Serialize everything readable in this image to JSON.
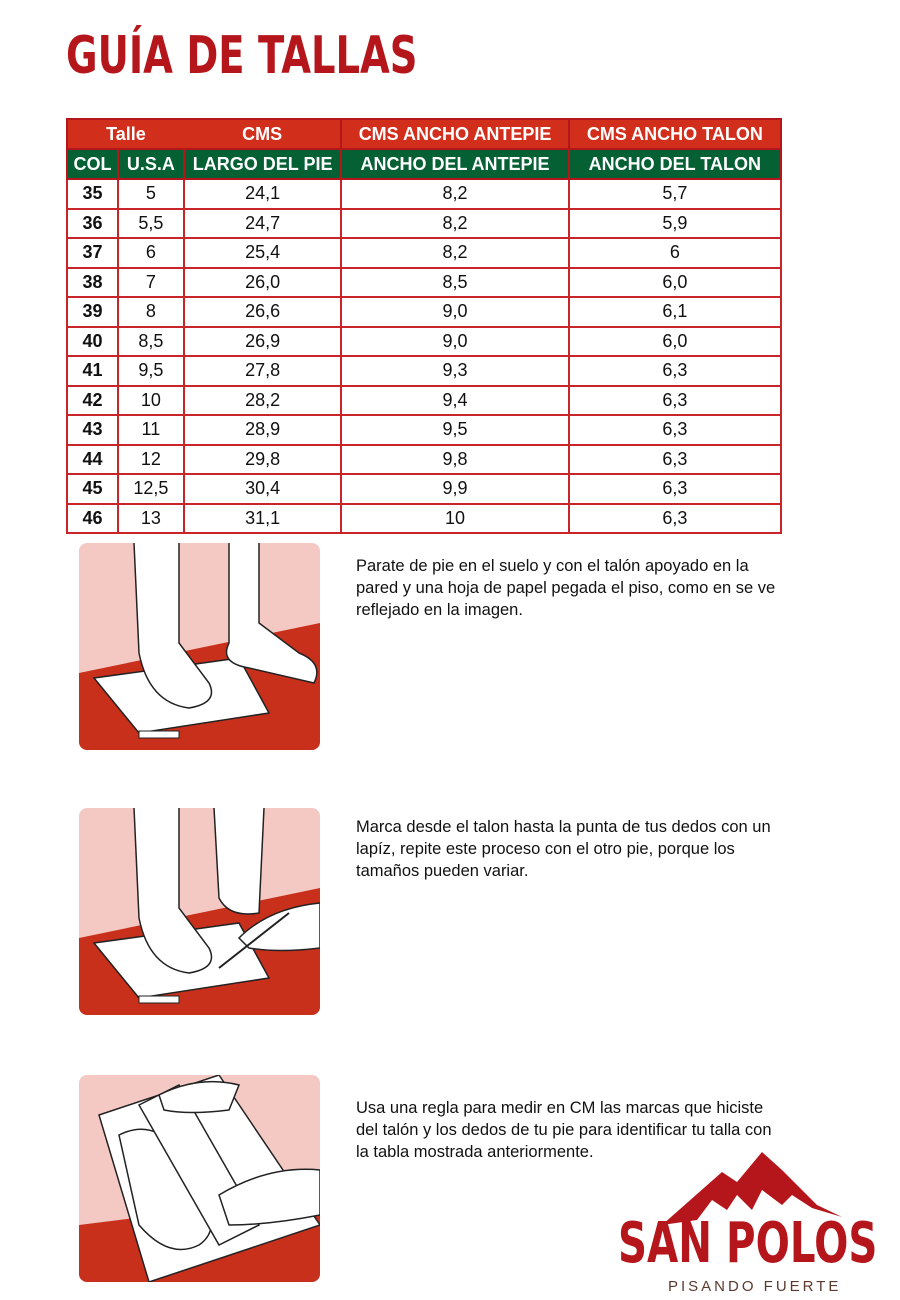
{
  "title": "GUÍA DE TALLAS",
  "table": {
    "header1": [
      "Talle",
      "CMS",
      "CMS ANCHO ANTEPIE",
      "CMS ANCHO TALON"
    ],
    "header2": [
      "COL",
      "U.S.A",
      "LARGO DEL PIE",
      "ANCHO DEL ANTEPIE",
      "ANCHO DEL TALON"
    ],
    "rows": [
      [
        "35",
        "5",
        "24,1",
        "8,2",
        "5,7"
      ],
      [
        "36",
        "5,5",
        "24,7",
        "8,2",
        "5,9"
      ],
      [
        "37",
        "6",
        "25,4",
        "8,2",
        "6"
      ],
      [
        "38",
        "7",
        "26,0",
        "8,5",
        "6,0"
      ],
      [
        "39",
        "8",
        "26,6",
        "9,0",
        "6,1"
      ],
      [
        "40",
        "8,5",
        "26,9",
        "9,0",
        "6,0"
      ],
      [
        "41",
        "9,5",
        "27,8",
        "9,3",
        "6,3"
      ],
      [
        "42",
        "10",
        "28,2",
        "9,4",
        "6,3"
      ],
      [
        "43",
        "11",
        "28,9",
        "9,5",
        "6,3"
      ],
      [
        "44",
        "12",
        "29,8",
        "9,8",
        "6,3"
      ],
      [
        "45",
        "12,5",
        "30,4",
        "9,9",
        "6,3"
      ],
      [
        "46",
        "13",
        "31,1",
        "10",
        "6,3"
      ]
    ]
  },
  "steps": [
    {
      "text": "Parate de pie en el  suelo y con el talón apoyado en la pared  y una hoja de papel pegada el piso, como en se ve reflejado en la imagen."
    },
    {
      "text": "Marca desde el talon hasta la punta de tus dedos con un lapíz, repite este proceso con el otro pie, porque los tamaños pueden variar."
    },
    {
      "text": "Usa una regla para medir en CM las marcas que hiciste del talón y los dedos de tu pie para identificar tu talla con la tabla mostrada anteriormente."
    }
  ],
  "brand": {
    "name": "SAN POLOS",
    "tagline": "PISANDO FUERTE"
  },
  "colors": {
    "red": "#d22e1c",
    "green": "#056034",
    "brand": "#b5161b",
    "wall": "#f4c9c4"
  }
}
